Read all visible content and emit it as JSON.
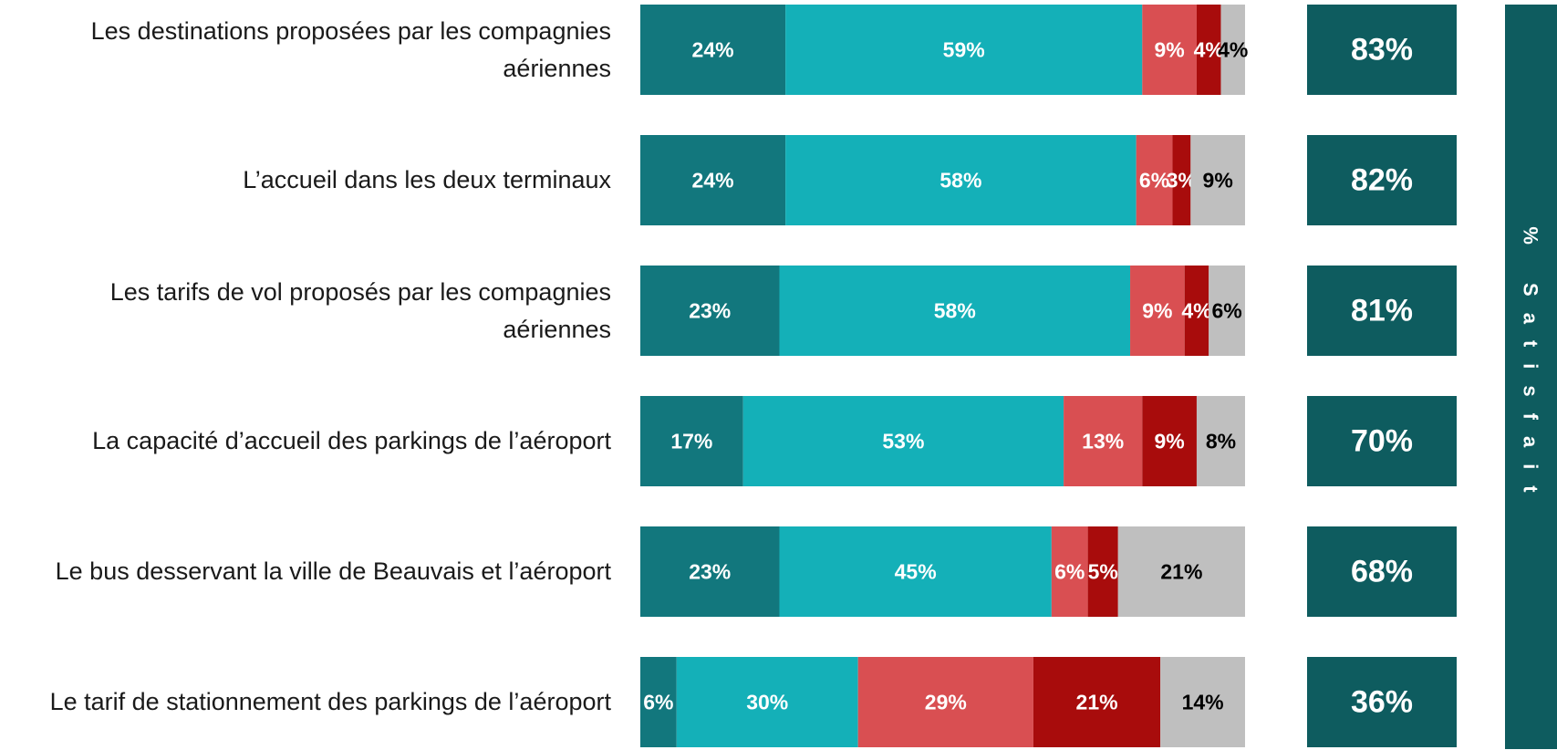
{
  "chart_data": {
    "type": "stacked-barh",
    "categories": [
      "Les destinations proposées par les compagnies aériennes",
      "L’accueil dans les deux terminaux",
      "Les tarifs de vol proposés par les compagnies aériennes",
      "La capacité d’accueil des parkings de l’aéroport",
      "Le bus desservant la ville de Beauvais et l’aéroport",
      "Le tarif de stationnement des parkings de l’aéroport"
    ],
    "xlim": [
      0,
      100
    ],
    "series": [
      {
        "color": "#12777d",
        "label_color": "#ffffff",
        "values": [
          24,
          24,
          23,
          17,
          23,
          6
        ],
        "value_labels": [
          "24%",
          "24%",
          "23%",
          "17%",
          "23%",
          "6%"
        ]
      },
      {
        "color": "#14b0b8",
        "label_color": "#ffffff",
        "values": [
          59,
          58,
          58,
          53,
          45,
          30
        ],
        "value_labels": [
          "59%",
          "58%",
          "58%",
          "53%",
          "45%",
          "30%"
        ]
      },
      {
        "color": "#d94f52",
        "label_color": "#ffffff",
        "values": [
          9,
          6,
          9,
          13,
          6,
          29
        ],
        "value_labels": [
          "9%",
          "6%",
          "9%",
          "13%",
          "6%",
          "29%"
        ]
      },
      {
        "color": "#a80c0c",
        "label_color": "#ffffff",
        "values": [
          4,
          3,
          4,
          9,
          5,
          21
        ],
        "value_labels": [
          "4%",
          "3%",
          "4%",
          "9%",
          "5%",
          "21%"
        ]
      },
      {
        "color": "#bfbfbf",
        "label_color": "#000000",
        "values": [
          4,
          9,
          6,
          8,
          21,
          14
        ],
        "value_labels": [
          "4%",
          "9%",
          "6%",
          "8%",
          "21%",
          "14%"
        ]
      }
    ],
    "totals": {
      "title": "% Satisfait",
      "color": "#0e5c5f",
      "values": [
        83,
        82,
        81,
        70,
        68,
        36
      ],
      "value_labels": [
        "83%",
        "82%",
        "81%",
        "70%",
        "68%",
        "36%"
      ]
    }
  }
}
